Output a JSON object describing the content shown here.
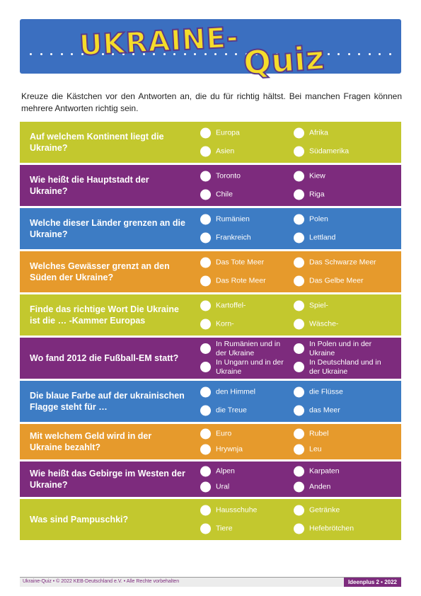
{
  "header": {
    "title_part1": "UKRAINE-",
    "title_part2": "Quiz"
  },
  "intro": "Kreuze die Kästchen vor den Antworten an, die du für richtig hältst. Bei manchen Fragen können mehrere Antworten richtig sein.",
  "colors": {
    "green": "#c3c82e",
    "purple": "#7d2b7d",
    "blue": "#3d7cc4",
    "orange": "#e69a2c",
    "banner": "#3b6fc0",
    "title": "#f5dc2a"
  },
  "questions": [
    {
      "question": "Auf welchem Kontinent liegt die Ukraine?",
      "options": [
        "Europa",
        "Afrika",
        "Asien",
        "Südamerika"
      ]
    },
    {
      "question": "Wie heißt die Hauptstadt der Ukraine?",
      "options": [
        "Toronto",
        "Kiew",
        "Chile",
        "Riga"
      ]
    },
    {
      "question": "Welche dieser Länder grenzen an die Ukraine?",
      "options": [
        "Rumänien",
        "Polen",
        "Frankreich",
        "Lettland"
      ]
    },
    {
      "question": "Welches Gewässer grenzt an den Süden der Ukraine?",
      "options": [
        "Das Tote Meer",
        "Das Schwarze Meer",
        "Das Rote Meer",
        "Das Gelbe Meer"
      ]
    },
    {
      "question": "Finde das richtige Wort Die Ukraine ist die … -Kammer Europas",
      "options": [
        "Kartoffel-",
        "Spiel-",
        "Korn-",
        "Wäsche-"
      ]
    },
    {
      "question": "Wo fand 2012 die Fußball-EM statt?",
      "options": [
        "In Rumänien und in der Ukraine",
        "In Polen und in der Ukraine",
        "In Ungarn und in der Ukraine",
        "In Deutschland und in der Ukraine"
      ]
    },
    {
      "question": "Die blaue Farbe auf der ukrainischen Flagge steht für …",
      "options": [
        "den Himmel",
        "die Flüsse",
        "die Treue",
        "das Meer"
      ]
    },
    {
      "question": "Mit welchem Geld wird in der Ukraine bezahlt?",
      "options": [
        "Euro",
        "Rubel",
        "Hrywnja",
        "Leu"
      ]
    },
    {
      "question": "Wie heißt das Gebirge im Westen der Ukraine?",
      "options": [
        "Alpen",
        "Karpaten",
        "Ural",
        "Anden"
      ]
    },
    {
      "question": "Was sind Pampuschki?",
      "options": [
        "Hausschuhe",
        "Getränke",
        "Tiere",
        "Hefebrötchen"
      ]
    }
  ],
  "footer": {
    "left": "Ukraine-Quiz • © 2022 KEB-Deutschland e.V. • Alle Rechte vorbehalten",
    "right": "Ideenplus 2 • 2022"
  }
}
